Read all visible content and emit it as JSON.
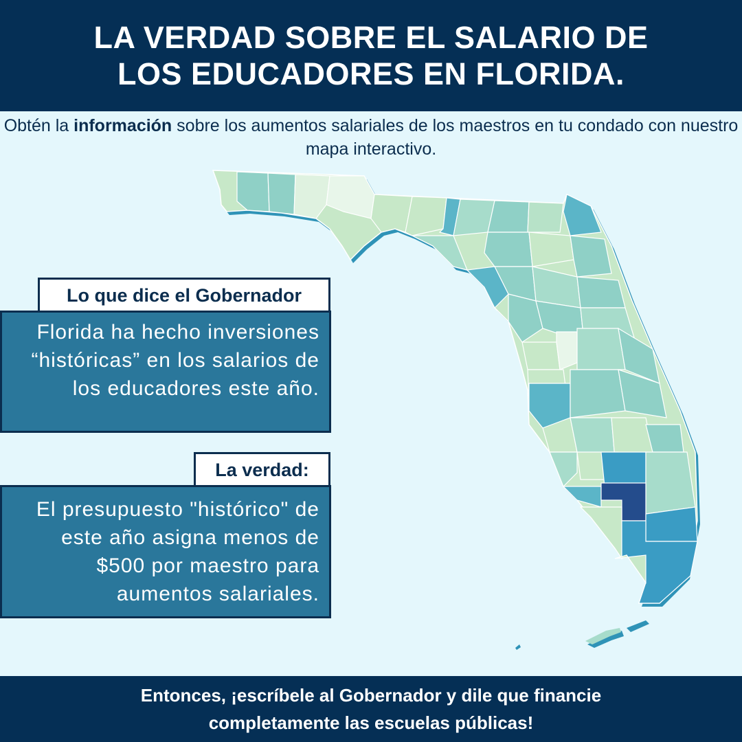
{
  "header": {
    "title_line1": "LA VERDAD SOBRE EL SALARIO DE",
    "title_line2": "LOS EDUCADORES EN FLORIDA."
  },
  "intro": {
    "pre": "Obtén la ",
    "bold": "información",
    "post": " sobre los aumentos salariales de los maestros en tu condado con nuestro mapa interactivo."
  },
  "governor": {
    "label": "Lo que dice el Gobernador",
    "text": "Florida ha hecho inversiones “históricas” en los salarios de los educadores este año."
  },
  "truth": {
    "label": "La verdad:",
    "text": "El presupuesto \"histórico\" de este año asigna menos de $500 por maestro para aumentos salariales."
  },
  "footer": {
    "line1": "Entonces, ¡escríbele al Gobernador y dile que financie",
    "line2": "completamente las escuelas públicas!"
  },
  "colors": {
    "navy": "#052f55",
    "panel_blue": "#2a779b",
    "background": "#e4f7fc",
    "map_light": "#c7e8c8",
    "map_mid": "#8fd0c6",
    "map_teal": "#5bb5c8",
    "map_blue": "#3a9cc4",
    "map_dark": "#244c8c"
  }
}
